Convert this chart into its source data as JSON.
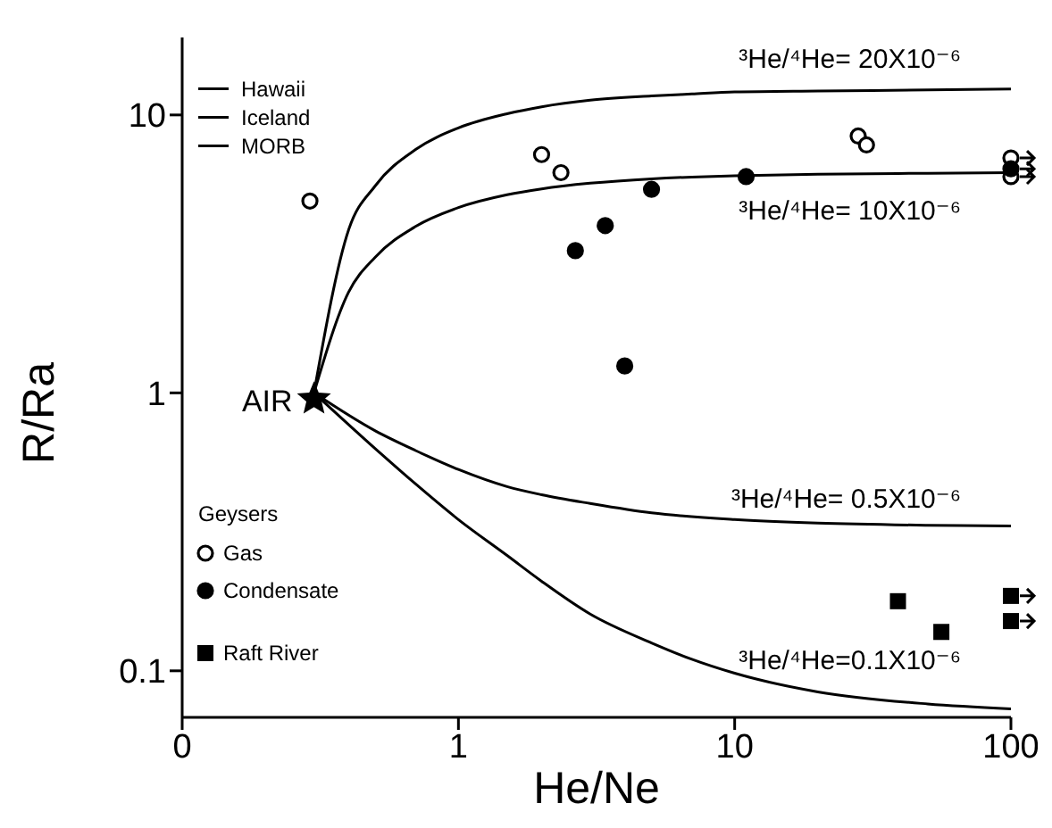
{
  "chart_data": {
    "type": "scatter",
    "xlabel": "He/Ne",
    "ylabel": "R/Ra",
    "log": "xy",
    "grid": false,
    "legend": "bottom left",
    "legend_title": "Geysers",
    "xlim": [
      0.1,
      100
    ],
    "xticks": [
      {
        "value": 0.1,
        "label": "0"
      },
      1,
      10,
      100
    ],
    "ylim": [
      0.068,
      19
    ],
    "yticks": [
      0.1,
      1,
      10
    ],
    "annotations": [
      "Hawaii",
      "Iceland",
      "MORB"
    ],
    "series": [
      {
        "type": "line",
        "name": "³He/⁴He= 20X10⁻⁶",
        "color": "#000000",
        "marker": "none",
        "x": [
          0.3,
          0.4,
          0.5,
          0.7,
          1,
          1.5,
          2,
          3,
          5,
          7,
          10,
          20,
          50,
          100
        ],
        "values": [
          1.0,
          3.85,
          5.56,
          7.51,
          8.98,
          10.1,
          10.7,
          11.3,
          11.7,
          11.9,
          12.1,
          12.2,
          12.3,
          12.4
        ]
      },
      {
        "type": "line",
        "name": "³He/⁴He= 10X10⁻⁶",
        "color": "#000000",
        "marker": "none",
        "x": [
          0.3,
          0.4,
          0.5,
          0.7,
          1,
          1.5,
          2,
          3,
          5,
          7,
          10,
          20,
          50,
          100
        ],
        "values": [
          1.0,
          2.3,
          3.08,
          3.97,
          4.64,
          5.16,
          5.42,
          5.68,
          5.89,
          5.98,
          6.04,
          6.12,
          6.17,
          6.2
        ]
      },
      {
        "type": "line",
        "name": "³He/⁴He= 0.5X10⁻⁶",
        "color": "#000000",
        "marker": "none",
        "x": [
          0.3,
          0.5,
          0.7,
          1,
          1.5,
          2,
          3,
          5,
          10,
          20,
          50,
          100
        ],
        "values": [
          1.0,
          0.73,
          0.62,
          0.53,
          0.46,
          0.43,
          0.4,
          0.37,
          0.35,
          0.34,
          0.334,
          0.332
        ]
      },
      {
        "type": "line",
        "name": "³He/⁴He=0.1X10⁻⁶",
        "color": "#000000",
        "marker": "none",
        "x": [
          0.3,
          0.5,
          0.7,
          1,
          1.5,
          2,
          3,
          5,
          7,
          10,
          20,
          50,
          100
        ],
        "values": [
          1.0,
          0.63,
          0.47,
          0.35,
          0.26,
          0.21,
          0.16,
          0.126,
          0.11,
          0.098,
          0.084,
          0.076,
          0.073
        ]
      },
      {
        "name": "Gas",
        "color": "#ffffff",
        "marker": "circle",
        "x": [
          0.29,
          2.0,
          2.35,
          28,
          30,
          100,
          100
        ],
        "values": [
          4.9,
          7.2,
          6.2,
          8.4,
          7.8,
          7.0,
          6.0
        ]
      },
      {
        "name": "Condensate",
        "color": "#000000",
        "marker": "circle",
        "x": [
          2.65,
          3.4,
          4.0,
          5.0,
          11,
          100
        ],
        "values": [
          3.25,
          4.0,
          1.25,
          5.4,
          6.0,
          6.4
        ]
      },
      {
        "name": "Raft River",
        "color": "#000000",
        "marker": "square",
        "x": [
          39,
          56,
          100,
          100
        ],
        "values": [
          0.178,
          0.138,
          0.186,
          0.151
        ]
      },
      {
        "name": "AIR",
        "color": "#000000",
        "marker": "star",
        "x": [
          0.3
        ],
        "values": [
          0.95
        ]
      }
    ]
  }
}
